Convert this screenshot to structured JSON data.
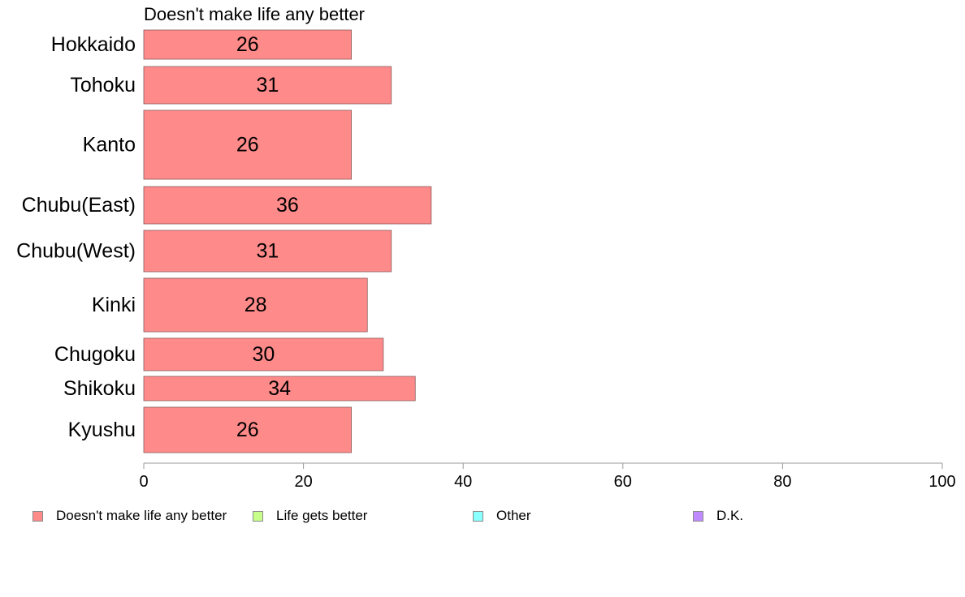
{
  "chart_data": {
    "type": "bar",
    "orientation": "horizontal",
    "title": "Doesn't make life any better",
    "categories": [
      "Hokkaido",
      "Tohoku",
      "Kanto",
      "Chubu(East)",
      "Chubu(West)",
      "Kinki",
      "Chugoku",
      "Shikoku",
      "Kyushu"
    ],
    "series": [
      {
        "name": "Doesn't make life any better",
        "values": [
          26,
          31,
          26,
          36,
          31,
          28,
          30,
          34,
          26
        ],
        "color": "#ff8a8a"
      }
    ],
    "data_labels": [
      "26",
      "31",
      "26",
      "36",
      "31",
      "28",
      "30",
      "34",
      "26"
    ],
    "xlim": [
      0,
      100
    ],
    "xticks": [
      0,
      20,
      40,
      60,
      80,
      100
    ],
    "grid": false,
    "legend": {
      "placement": "bottom",
      "items": [
        {
          "label": "Doesn't make life any better",
          "color": "#ff8a8a"
        },
        {
          "label": "Life gets better",
          "color": "#c8ff8a"
        },
        {
          "label": "Other",
          "color": "#8affff"
        },
        {
          "label": "D.K.",
          "color": "#c08aff"
        }
      ]
    }
  }
}
